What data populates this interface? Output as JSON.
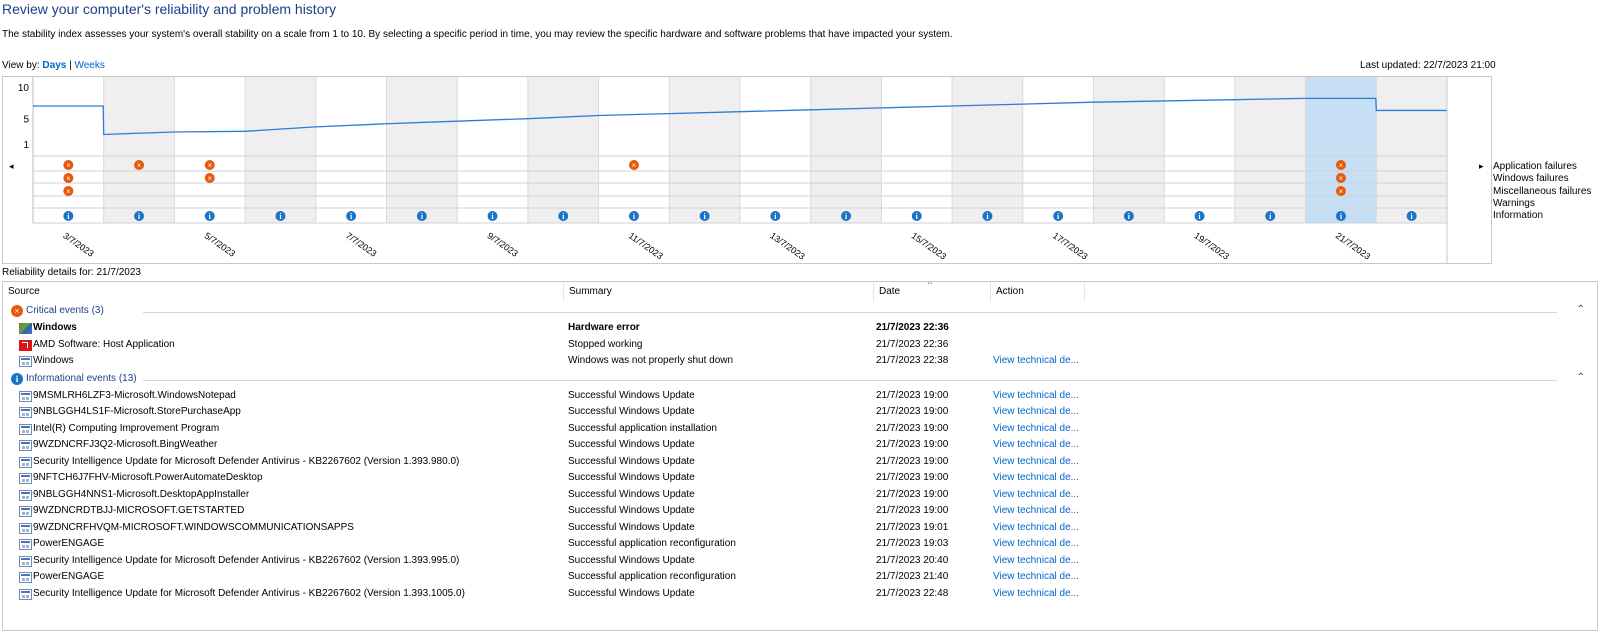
{
  "page": {
    "title": "Review your computer's reliability and problem history",
    "description": "The stability index assesses your system's overall stability on a scale from 1 to 10. By selecting a specific period in time, you may review the specific hardware and software problems that have impacted your system.",
    "view_by_label": "View by:",
    "view_days": "Days",
    "view_sep": "|",
    "view_weeks": "Weeks",
    "last_updated": "Last updated: 22/7/2023 21:00",
    "details_for": "Reliability details for: 21/7/2023"
  },
  "chart": {
    "y_ticks": [
      "10",
      "5",
      "1"
    ],
    "selected_column": 18,
    "date_labels": [
      "3/7/2023",
      "5/7/2023",
      "7/7/2023",
      "9/7/2023",
      "11/7/2023",
      "13/7/2023",
      "15/7/2023",
      "17/7/2023",
      "19/7/2023",
      "21/7/2023"
    ],
    "legend": [
      "Application failures",
      "Windows failures",
      "Miscellaneous failures",
      "Warnings",
      "Information"
    ],
    "colors": {
      "line": "#2b7cd3",
      "shaded": "#efefef",
      "selected": "#c7dff4",
      "error": "#e8590c",
      "info": "#1a73c7",
      "grid": "#d9d9d9"
    }
  },
  "chart_data": {
    "type": "line",
    "title": "",
    "xlabel": "",
    "ylabel": "",
    "ylim": [
      1,
      10
    ],
    "categories": [
      "3/7/2023",
      "4/7/2023",
      "5/7/2023",
      "6/7/2023",
      "7/7/2023",
      "8/7/2023",
      "9/7/2023",
      "10/7/2023",
      "11/7/2023",
      "12/7/2023",
      "13/7/2023",
      "14/7/2023",
      "15/7/2023",
      "16/7/2023",
      "17/7/2023",
      "18/7/2023",
      "19/7/2023",
      "20/7/2023",
      "21/7/2023",
      "22/7/2023"
    ],
    "series": [
      {
        "values": [
          7.0,
          2.5,
          2.9,
          3.0,
          3.7,
          4.2,
          4.6,
          5.0,
          5.5,
          5.8,
          6.1,
          6.4,
          6.7,
          7.0,
          7.3,
          7.6,
          7.8,
          8.0,
          8.2,
          6.3
        ]
      }
    ],
    "event_rows": {
      "Application failures": [
        0,
        1,
        2,
        8,
        18
      ],
      "Windows failures": [
        0,
        2,
        18
      ],
      "Miscellaneous failures": [
        0,
        18
      ],
      "Warnings": [],
      "Information": [
        0,
        1,
        2,
        3,
        4,
        5,
        6,
        7,
        8,
        9,
        10,
        11,
        12,
        13,
        14,
        15,
        16,
        17,
        18,
        19
      ]
    }
  },
  "table": {
    "columns": [
      "Source",
      "Summary",
      "Date",
      "Action"
    ],
    "critical": {
      "label": "Critical events (3)",
      "rows": [
        {
          "icon": "windows-icon",
          "source": "Windows",
          "summary": "Hardware error",
          "date": "21/7/2023 22:36",
          "action": "",
          "bold": true
        },
        {
          "icon": "amd-icon",
          "source": "AMD Software: Host Application",
          "summary": "Stopped working",
          "date": "21/7/2023 22:36",
          "action": ""
        },
        {
          "icon": "app-icon",
          "source": "Windows",
          "summary": "Windows was not properly shut down",
          "date": "21/7/2023 22:38",
          "action": "View technical de..."
        }
      ]
    },
    "info": {
      "label": "Informational events (13)",
      "rows": [
        {
          "source": "9MSMLRH6LZF3-Microsoft.WindowsNotepad",
          "summary": "Successful Windows Update",
          "date": "21/7/2023 19:00",
          "action": "View technical de..."
        },
        {
          "source": "9NBLGGH4LS1F-Microsoft.StorePurchaseApp",
          "summary": "Successful Windows Update",
          "date": "21/7/2023 19:00",
          "action": "View technical de..."
        },
        {
          "source": "Intel(R) Computing Improvement Program",
          "summary": "Successful application installation",
          "date": "21/7/2023 19:00",
          "action": "View technical de..."
        },
        {
          "source": "9WZDNCRFJ3Q2-Microsoft.BingWeather",
          "summary": "Successful Windows Update",
          "date": "21/7/2023 19:00",
          "action": "View technical de..."
        },
        {
          "source": "Security Intelligence Update for Microsoft Defender Antivirus - KB2267602 (Version 1.393.980.0)",
          "summary": "Successful Windows Update",
          "date": "21/7/2023 19:00",
          "action": "View technical de..."
        },
        {
          "source": "9NFTCH6J7FHV-Microsoft.PowerAutomateDesktop",
          "summary": "Successful Windows Update",
          "date": "21/7/2023 19:00",
          "action": "View technical de..."
        },
        {
          "source": "9NBLGGH4NNS1-Microsoft.DesktopAppInstaller",
          "summary": "Successful Windows Update",
          "date": "21/7/2023 19:00",
          "action": "View technical de..."
        },
        {
          "source": "9WZDNCRDTBJJ-MICROSOFT.GETSTARTED",
          "summary": "Successful Windows Update",
          "date": "21/7/2023 19:00",
          "action": "View technical de..."
        },
        {
          "source": "9WZDNCRFHVQM-MICROSOFT.WINDOWSCOMMUNICATIONSAPPS",
          "summary": "Successful Windows Update",
          "date": "21/7/2023 19:01",
          "action": "View technical de..."
        },
        {
          "source": "PowerENGAGE",
          "summary": "Successful application reconfiguration",
          "date": "21/7/2023 19:03",
          "action": "View technical de..."
        },
        {
          "source": "Security Intelligence Update for Microsoft Defender Antivirus - KB2267602 (Version 1.393.995.0)",
          "summary": "Successful Windows Update",
          "date": "21/7/2023 20:40",
          "action": "View technical de..."
        },
        {
          "source": "PowerENGAGE",
          "summary": "Successful application reconfiguration",
          "date": "21/7/2023 21:40",
          "action": "View technical de..."
        },
        {
          "source": "Security Intelligence Update for Microsoft Defender Antivirus - KB2267602 (Version 1.393.1005.0)",
          "summary": "Successful Windows Update",
          "date": "21/7/2023 22:48",
          "action": "View technical de..."
        }
      ]
    }
  }
}
